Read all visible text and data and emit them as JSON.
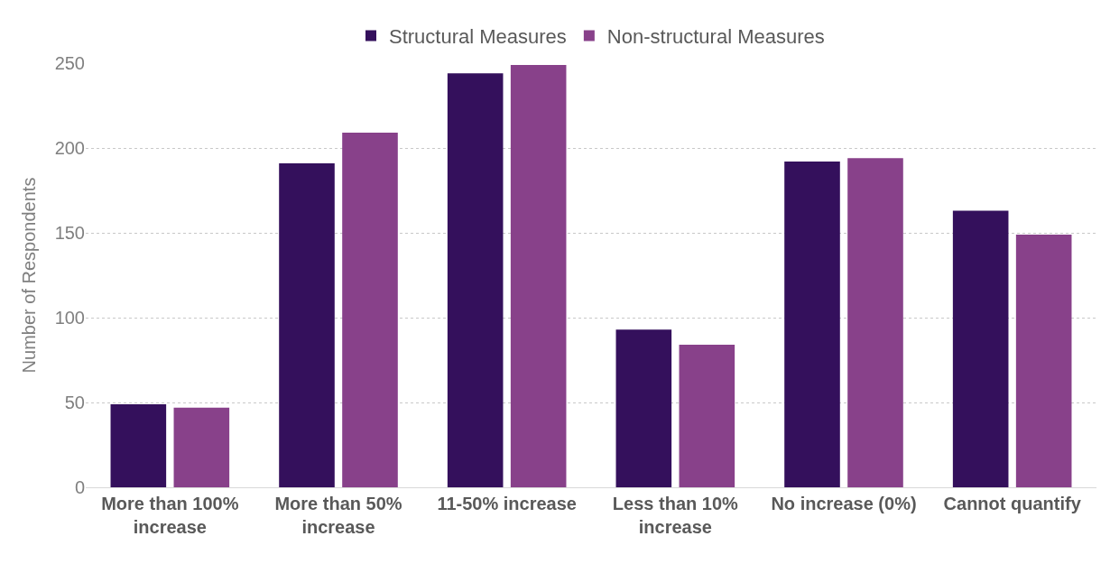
{
  "chart_data": {
    "type": "bar",
    "ylabel": "Number of Respondents",
    "categories": [
      "More than 100% increase",
      "More than 50% increase",
      "11-50% increase",
      "Less than 10% increase",
      "No increase (0%)",
      "Cannot quantify"
    ],
    "series": [
      {
        "name": "Structural Measures",
        "color": "#34105c",
        "values": [
          49,
          191,
          244,
          93,
          192,
          163
        ]
      },
      {
        "name": "Non-structural Measures",
        "color": "#88418a",
        "values": [
          47,
          209,
          249,
          84,
          194,
          149
        ]
      }
    ],
    "ylim": [
      0,
      250
    ],
    "yticks": [
      0,
      50,
      100,
      150,
      200,
      250
    ],
    "grid": "y",
    "legend": "top"
  }
}
